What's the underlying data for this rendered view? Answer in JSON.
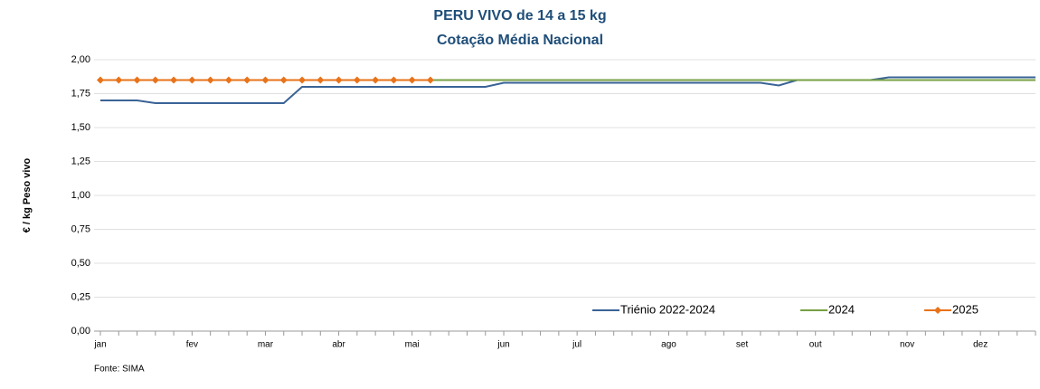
{
  "chart_data": {
    "type": "line",
    "title": "PERU VIVO de 14 a 15 kg",
    "subtitle": "Cotação Média Nacional",
    "y_label": "€ / kg Peso vivo",
    "source": "Fonte: SIMA",
    "categories": [
      "jan",
      null,
      null,
      null,
      null,
      "fev",
      null,
      null,
      null,
      "mar",
      null,
      null,
      null,
      "abr",
      null,
      null,
      null,
      "mai",
      null,
      null,
      null,
      null,
      "jun",
      null,
      null,
      null,
      "jul",
      null,
      null,
      null,
      null,
      "ago",
      null,
      null,
      null,
      "set",
      null,
      null,
      null,
      "out",
      null,
      null,
      null,
      null,
      "nov",
      null,
      null,
      null,
      "dez",
      null,
      null,
      null
    ],
    "series": [
      {
        "name": "Triénio 2022-2024",
        "color": "#3a6396",
        "marker": false,
        "values": [
          1.7,
          1.7,
          1.7,
          1.68,
          1.68,
          1.68,
          1.68,
          1.68,
          1.68,
          1.68,
          1.68,
          1.8,
          1.8,
          1.8,
          1.8,
          1.8,
          1.8,
          1.8,
          1.8,
          1.8,
          1.8,
          1.8,
          1.83,
          1.83,
          1.83,
          1.83,
          1.83,
          1.83,
          1.83,
          1.83,
          1.83,
          1.83,
          1.83,
          1.83,
          1.83,
          1.83,
          1.83,
          1.81,
          1.85,
          1.85,
          1.85,
          1.85,
          1.85,
          1.87,
          1.87,
          1.87,
          1.87,
          1.87,
          1.87,
          1.87,
          1.87,
          1.87
        ]
      },
      {
        "name": "2024",
        "color": "#77a043",
        "marker": false,
        "values": [
          1.85,
          1.85,
          1.85,
          1.85,
          1.85,
          1.85,
          1.85,
          1.85,
          1.85,
          1.85,
          1.85,
          1.85,
          1.85,
          1.85,
          1.85,
          1.85,
          1.85,
          1.85,
          1.85,
          1.85,
          1.85,
          1.85,
          1.85,
          1.85,
          1.85,
          1.85,
          1.85,
          1.85,
          1.85,
          1.85,
          1.85,
          1.85,
          1.85,
          1.85,
          1.85,
          1.85,
          1.85,
          1.85,
          1.85,
          1.85,
          1.85,
          1.85,
          1.85,
          1.85,
          1.85,
          1.85,
          1.85,
          1.85,
          1.85,
          1.85,
          1.85,
          1.85
        ]
      },
      {
        "name": "2025",
        "color": "#e8731a",
        "marker": true,
        "values": [
          1.85,
          1.85,
          1.85,
          1.85,
          1.85,
          1.85,
          1.85,
          1.85,
          1.85,
          1.85,
          1.85,
          1.85,
          1.85,
          1.85,
          1.85,
          1.85,
          1.85,
          1.85,
          1.85,
          null,
          null,
          null,
          null,
          null,
          null,
          null,
          null,
          null,
          null,
          null,
          null,
          null,
          null,
          null,
          null,
          null,
          null,
          null,
          null,
          null,
          null,
          null,
          null,
          null,
          null,
          null,
          null,
          null,
          null,
          null,
          null,
          null
        ]
      }
    ],
    "ylim": [
      0,
      2
    ],
    "yticks": [
      {
        "value": 0,
        "label": "0,00"
      },
      {
        "value": 0.25,
        "label": "0,25"
      },
      {
        "value": 0.5,
        "label": "0,50"
      },
      {
        "value": 0.75,
        "label": "0,75"
      },
      {
        "value": 1,
        "label": "1,00"
      },
      {
        "value": 1.25,
        "label": "1,25"
      },
      {
        "value": 1.5,
        "label": "1,50"
      },
      {
        "value": 1.75,
        "label": "1,75"
      },
      {
        "value": 2,
        "label": "2,00"
      }
    ],
    "grid": true,
    "legend": "lower right"
  }
}
